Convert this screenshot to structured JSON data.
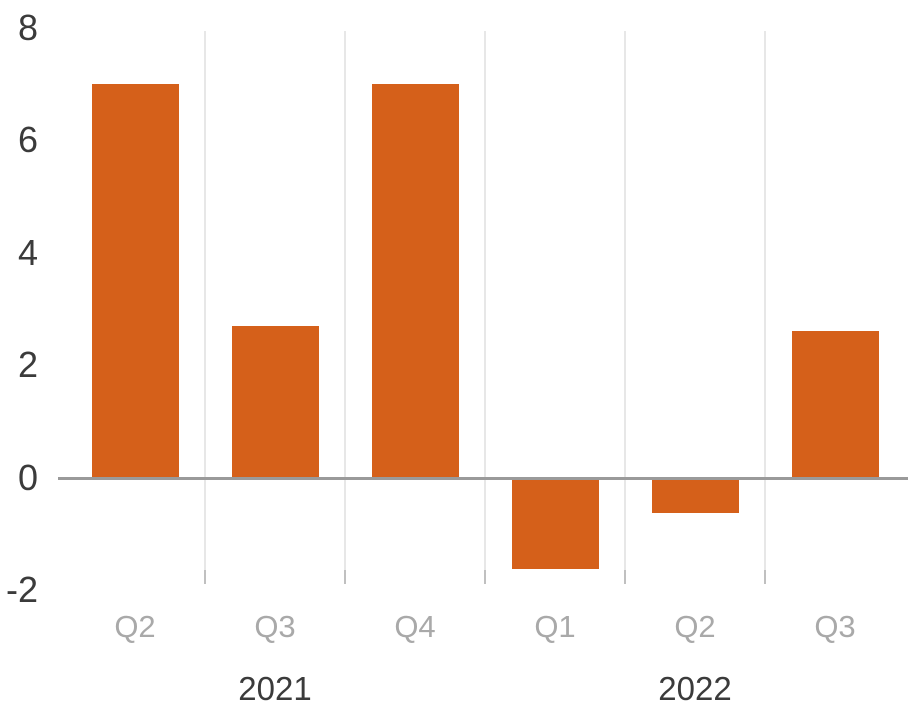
{
  "chart_data": {
    "type": "bar",
    "title": "",
    "xlabel": "",
    "ylabel": "",
    "categories": [
      "Q2",
      "Q3",
      "Q4",
      "Q1",
      "Q2",
      "Q3"
    ],
    "values": [
      7.0,
      2.7,
      7.0,
      -1.6,
      -0.6,
      2.6
    ],
    "year_groups": [
      {
        "label": "2021",
        "start": 0,
        "end": 2
      },
      {
        "label": "2022",
        "start": 3,
        "end": 5
      }
    ],
    "yticks": [
      8,
      6,
      4,
      2,
      0,
      -2
    ],
    "ylim": [
      -2,
      8
    ],
    "grid": "vertical-category-boundaries",
    "legend": "none",
    "colors": {
      "bar": "#d5601a",
      "y_axis_label": "#3b3b3b",
      "quarter_label": "#a9a9a9",
      "year_label": "#3b3b3b",
      "gridline": "#e7e7e7",
      "axis_tick": "#c0c0c0",
      "zero_line": "#9a9a9a"
    }
  }
}
